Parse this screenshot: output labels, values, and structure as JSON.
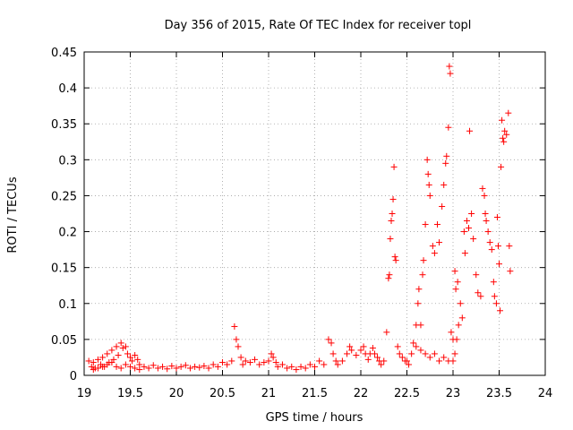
{
  "chart_data": {
    "type": "scatter",
    "title": "Day 356 of 2015, Rate Of TEC Index for receiver topl",
    "xlabel": "GPS time / hours",
    "ylabel": "ROTI / TECUs",
    "xlim": [
      19,
      24
    ],
    "ylim": [
      0,
      0.45
    ],
    "x_ticks": [
      19,
      19.5,
      20,
      20.5,
      21,
      21.5,
      22,
      22.5,
      23,
      23.5,
      24
    ],
    "x_tick_labels": [
      "19",
      "19.5",
      "20",
      "20.5",
      "21",
      "21.5",
      "22",
      "22.5",
      "23",
      "23.5",
      "24"
    ],
    "y_ticks": [
      0,
      0.05,
      0.1,
      0.15,
      0.2,
      0.25,
      0.3,
      0.35,
      0.4,
      0.45
    ],
    "y_tick_labels": [
      "0",
      "0.05",
      "0.1",
      "0.15",
      "0.2",
      "0.25",
      "0.3",
      "0.35",
      "0.4",
      "0.45"
    ],
    "grid": true,
    "marker": "plus",
    "color": "#ff0000",
    "series": [
      {
        "name": "ROTI",
        "points": [
          [
            19.05,
            0.02
          ],
          [
            19.08,
            0.012
          ],
          [
            19.1,
            0.018
          ],
          [
            19.12,
            0.01
          ],
          [
            19.15,
            0.022
          ],
          [
            19.18,
            0.015
          ],
          [
            19.2,
            0.025
          ],
          [
            19.22,
            0.012
          ],
          [
            19.25,
            0.03
          ],
          [
            19.27,
            0.018
          ],
          [
            19.3,
            0.035
          ],
          [
            19.32,
            0.022
          ],
          [
            19.35,
            0.04
          ],
          [
            19.37,
            0.028
          ],
          [
            19.4,
            0.045
          ],
          [
            19.42,
            0.038
          ],
          [
            19.45,
            0.04
          ],
          [
            19.47,
            0.03
          ],
          [
            19.5,
            0.025
          ],
          [
            19.52,
            0.02
          ],
          [
            19.55,
            0.028
          ],
          [
            19.58,
            0.022
          ],
          [
            19.6,
            0.015
          ],
          [
            19.1,
            0.008
          ],
          [
            19.15,
            0.01
          ],
          [
            19.2,
            0.012
          ],
          [
            19.25,
            0.015
          ],
          [
            19.3,
            0.018
          ],
          [
            19.35,
            0.012
          ],
          [
            19.4,
            0.01
          ],
          [
            19.45,
            0.015
          ],
          [
            19.5,
            0.012
          ],
          [
            19.55,
            0.01
          ],
          [
            19.6,
            0.008
          ],
          [
            19.65,
            0.012
          ],
          [
            19.7,
            0.01
          ],
          [
            19.75,
            0.014
          ],
          [
            19.8,
            0.01
          ],
          [
            19.85,
            0.012
          ],
          [
            19.9,
            0.009
          ],
          [
            19.95,
            0.013
          ],
          [
            20,
            0.01
          ],
          [
            20.05,
            0.012
          ],
          [
            20.1,
            0.014
          ],
          [
            20.15,
            0.01
          ],
          [
            20.2,
            0.012
          ],
          [
            20.25,
            0.011
          ],
          [
            20.3,
            0.013
          ],
          [
            20.35,
            0.01
          ],
          [
            20.4,
            0.015
          ],
          [
            20.45,
            0.012
          ],
          [
            20.5,
            0.018
          ],
          [
            20.55,
            0.015
          ],
          [
            20.6,
            0.02
          ],
          [
            20.63,
            0.068
          ],
          [
            20.65,
            0.05
          ],
          [
            20.67,
            0.04
          ],
          [
            20.7,
            0.025
          ],
          [
            20.72,
            0.015
          ],
          [
            20.75,
            0.02
          ],
          [
            20.8,
            0.018
          ],
          [
            20.85,
            0.022
          ],
          [
            20.9,
            0.015
          ],
          [
            20.95,
            0.018
          ],
          [
            21,
            0.02
          ],
          [
            21.03,
            0.03
          ],
          [
            21.05,
            0.025
          ],
          [
            21.08,
            0.018
          ],
          [
            21.1,
            0.012
          ],
          [
            21.15,
            0.015
          ],
          [
            21.2,
            0.01
          ],
          [
            21.25,
            0.012
          ],
          [
            21.3,
            0.008
          ],
          [
            21.35,
            0.012
          ],
          [
            21.4,
            0.01
          ],
          [
            21.45,
            0.015
          ],
          [
            21.5,
            0.012
          ],
          [
            21.55,
            0.02
          ],
          [
            21.6,
            0.015
          ],
          [
            21.65,
            0.05
          ],
          [
            21.68,
            0.045
          ],
          [
            21.7,
            0.03
          ],
          [
            21.73,
            0.02
          ],
          [
            21.75,
            0.015
          ],
          [
            21.8,
            0.02
          ],
          [
            21.85,
            0.03
          ],
          [
            21.88,
            0.04
          ],
          [
            21.9,
            0.035
          ],
          [
            21.95,
            0.028
          ],
          [
            22,
            0.035
          ],
          [
            22.03,
            0.04
          ],
          [
            22.05,
            0.03
          ],
          [
            22.08,
            0.022
          ],
          [
            22.1,
            0.03
          ],
          [
            22.13,
            0.038
          ],
          [
            22.15,
            0.03
          ],
          [
            22.18,
            0.025
          ],
          [
            22.2,
            0.02
          ],
          [
            22.22,
            0.015
          ],
          [
            22.25,
            0.02
          ],
          [
            22.28,
            0.06
          ],
          [
            22.3,
            0.135
          ],
          [
            22.31,
            0.14
          ],
          [
            22.32,
            0.19
          ],
          [
            22.33,
            0.215
          ],
          [
            22.34,
            0.225
          ],
          [
            22.35,
            0.245
          ],
          [
            22.36,
            0.29
          ],
          [
            22.37,
            0.165
          ],
          [
            22.38,
            0.16
          ],
          [
            22.4,
            0.04
          ],
          [
            22.42,
            0.03
          ],
          [
            22.45,
            0.025
          ],
          [
            22.48,
            0.02
          ],
          [
            22.5,
            0.02
          ],
          [
            22.52,
            0.015
          ],
          [
            22.55,
            0.03
          ],
          [
            22.57,
            0.045
          ],
          [
            22.6,
            0.07
          ],
          [
            22.62,
            0.1
          ],
          [
            22.63,
            0.12
          ],
          [
            22.65,
            0.07
          ],
          [
            22.67,
            0.14
          ],
          [
            22.68,
            0.16
          ],
          [
            22.7,
            0.21
          ],
          [
            22.72,
            0.3
          ],
          [
            22.73,
            0.28
          ],
          [
            22.74,
            0.265
          ],
          [
            22.75,
            0.25
          ],
          [
            22.78,
            0.18
          ],
          [
            22.8,
            0.17
          ],
          [
            22.83,
            0.21
          ],
          [
            22.85,
            0.185
          ],
          [
            22.88,
            0.235
          ],
          [
            22.9,
            0.265
          ],
          [
            22.92,
            0.295
          ],
          [
            22.93,
            0.305
          ],
          [
            22.95,
            0.345
          ],
          [
            22.96,
            0.43
          ],
          [
            22.97,
            0.42
          ],
          [
            22.98,
            0.06
          ],
          [
            23,
            0.05
          ],
          [
            23.02,
            0.145
          ],
          [
            23.03,
            0.12
          ],
          [
            23.05,
            0.13
          ],
          [
            23.08,
            0.1
          ],
          [
            23.1,
            0.08
          ],
          [
            23.12,
            0.2
          ],
          [
            23.13,
            0.17
          ],
          [
            23.15,
            0.215
          ],
          [
            23.17,
            0.205
          ],
          [
            23.18,
            0.34
          ],
          [
            23.2,
            0.225
          ],
          [
            23.22,
            0.19
          ],
          [
            23.25,
            0.14
          ],
          [
            23.27,
            0.115
          ],
          [
            23.3,
            0.11
          ],
          [
            23.32,
            0.26
          ],
          [
            23.34,
            0.25
          ],
          [
            23.35,
            0.225
          ],
          [
            23.36,
            0.215
          ],
          [
            23.38,
            0.2
          ],
          [
            23.4,
            0.185
          ],
          [
            23.42,
            0.175
          ],
          [
            23.44,
            0.13
          ],
          [
            23.45,
            0.11
          ],
          [
            23.47,
            0.1
          ],
          [
            23.48,
            0.22
          ],
          [
            23.49,
            0.18
          ],
          [
            23.5,
            0.155
          ],
          [
            23.51,
            0.09
          ],
          [
            23.52,
            0.29
          ],
          [
            23.53,
            0.355
          ],
          [
            23.54,
            0.33
          ],
          [
            23.55,
            0.325
          ],
          [
            23.56,
            0.34
          ],
          [
            23.58,
            0.335
          ],
          [
            23.6,
            0.365
          ],
          [
            23.61,
            0.18
          ],
          [
            23.62,
            0.145
          ],
          [
            22.6,
            0.04
          ],
          [
            22.65,
            0.035
          ],
          [
            22.7,
            0.03
          ],
          [
            22.75,
            0.025
          ],
          [
            22.8,
            0.03
          ],
          [
            22.85,
            0.02
          ],
          [
            22.9,
            0.025
          ],
          [
            22.95,
            0.02
          ],
          [
            23,
            0.02
          ],
          [
            23.02,
            0.03
          ],
          [
            23.04,
            0.05
          ],
          [
            23.06,
            0.07
          ]
        ]
      }
    ]
  }
}
